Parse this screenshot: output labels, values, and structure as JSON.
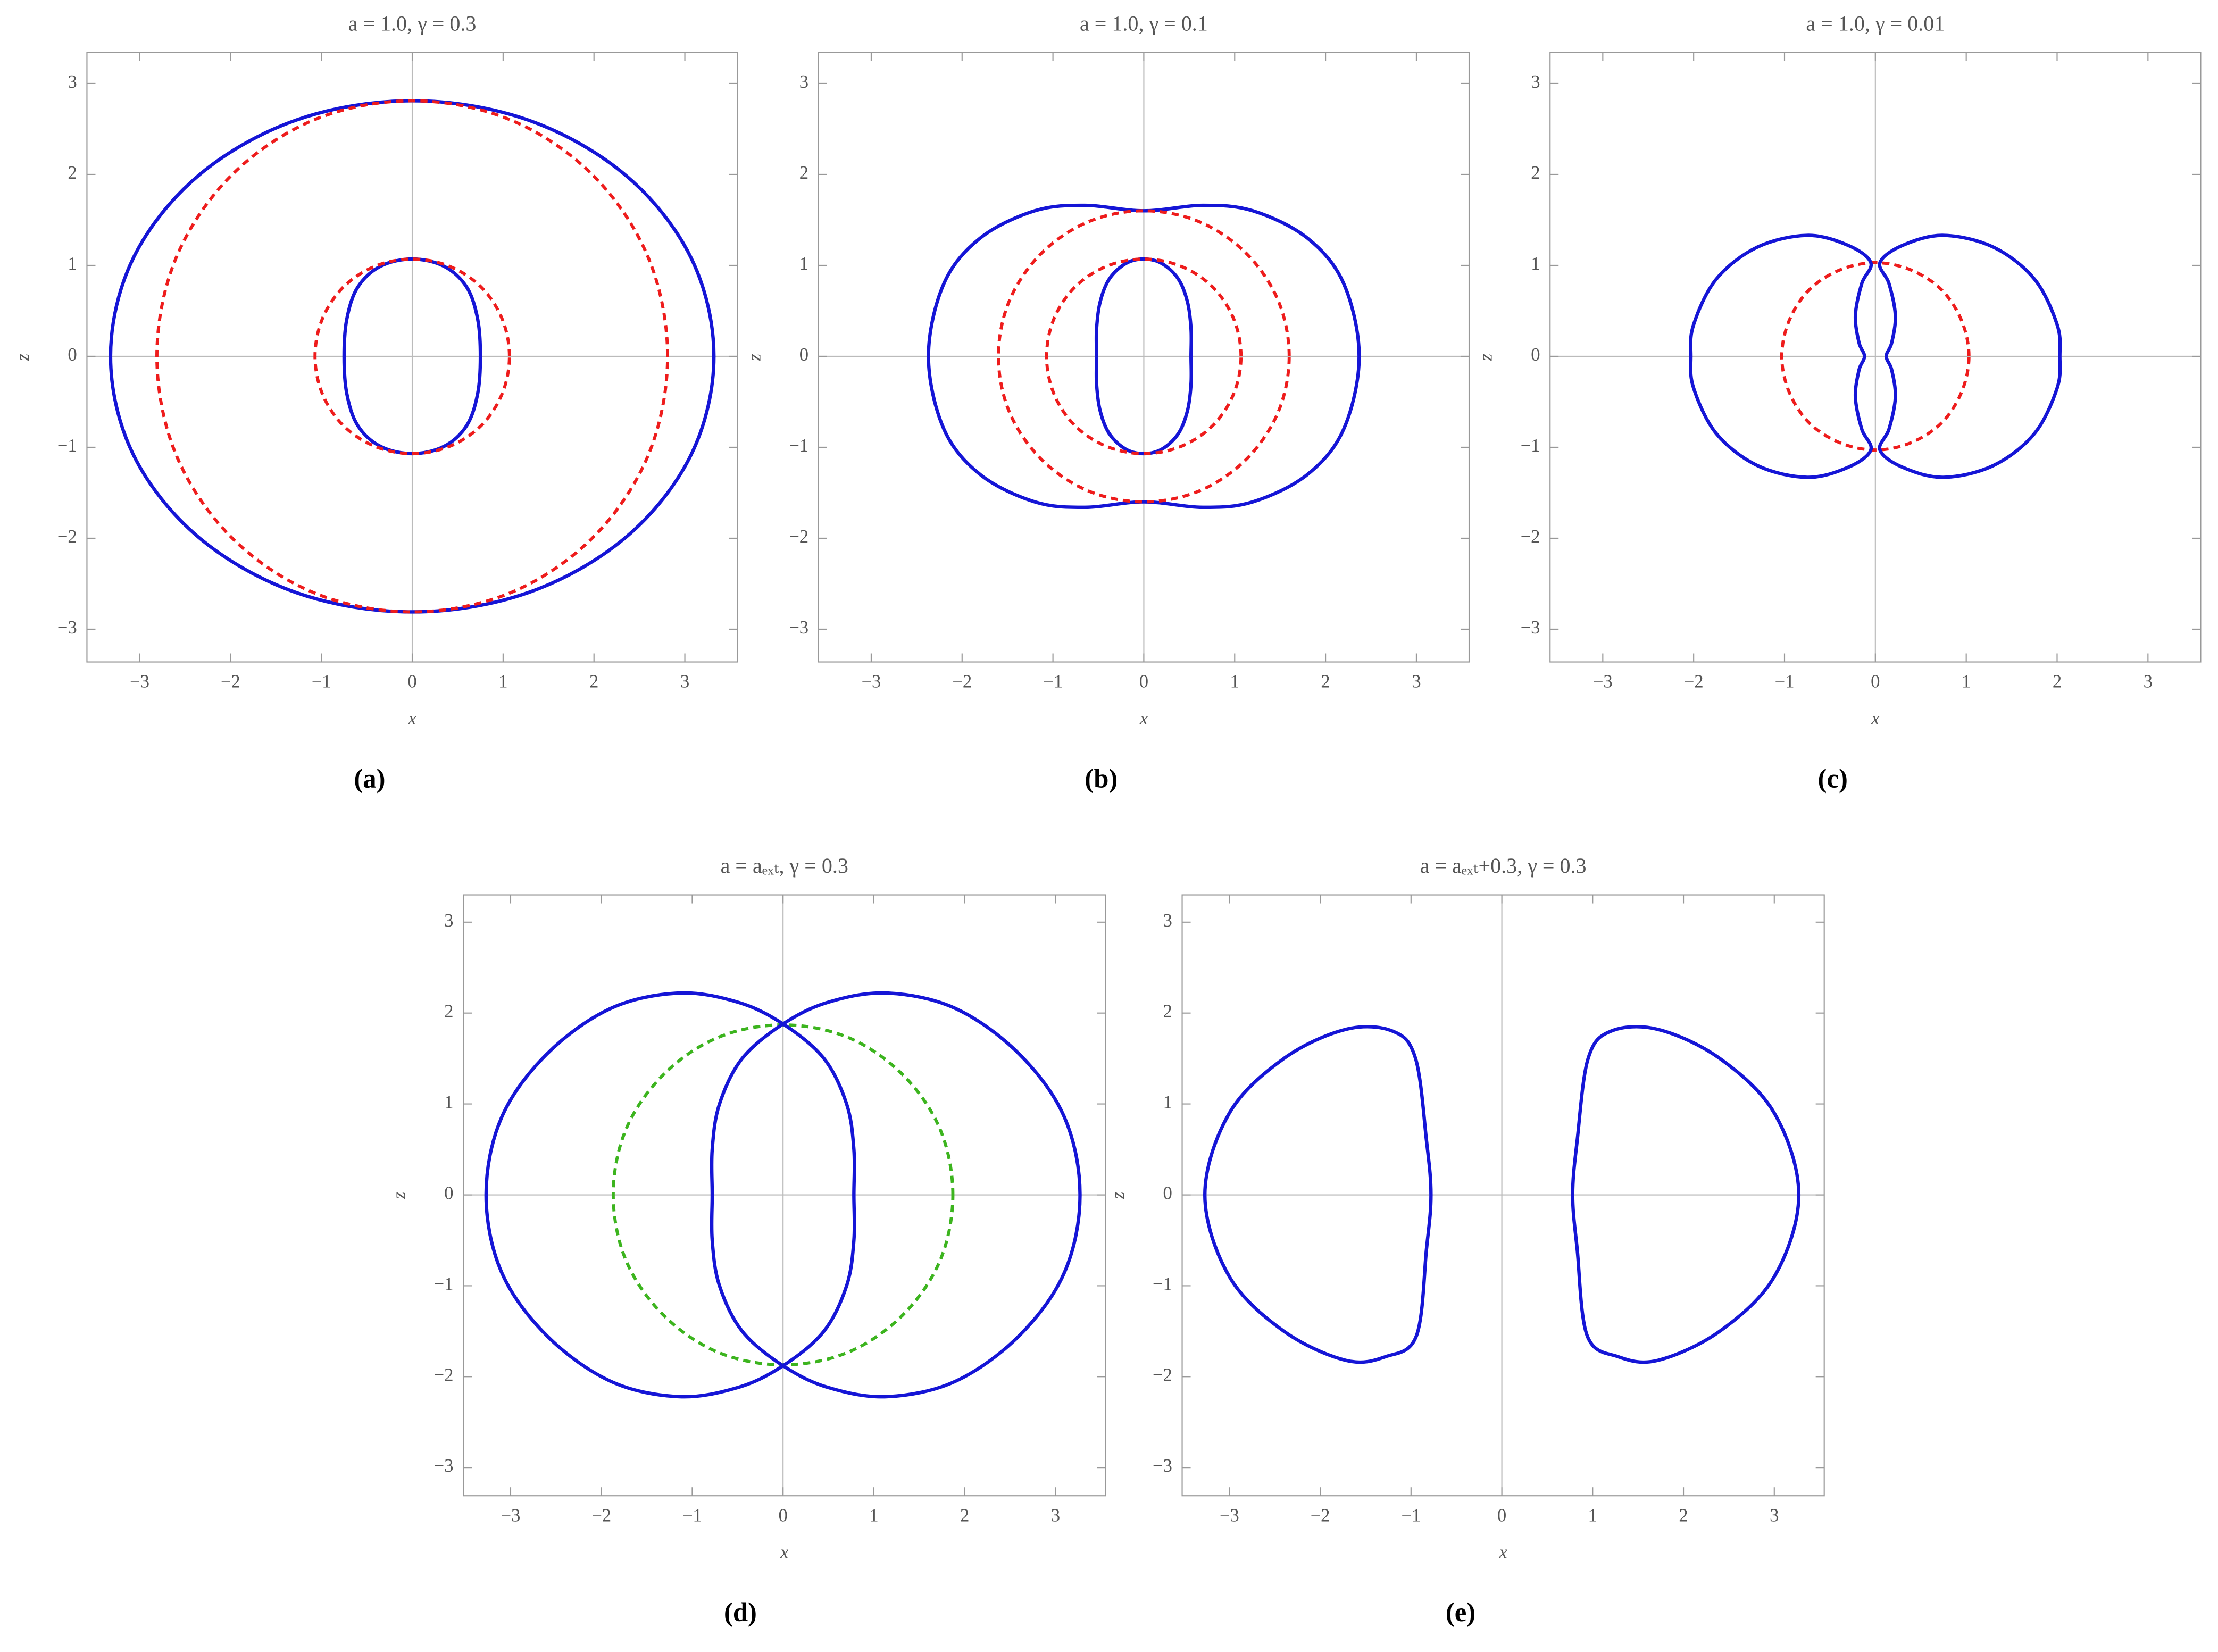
{
  "chart_data": [
    {
      "type": "line",
      "title": "a = 1.0, γ = 0.3",
      "caption": "(a)",
      "x_label": "x",
      "y_label": "z",
      "xlim": [
        -3.58,
        3.58
      ],
      "ylim": [
        -3.36,
        3.34
      ],
      "xticks": [
        {
          "value": -3,
          "label": "−3"
        },
        {
          "value": -2,
          "label": "−2"
        },
        {
          "value": -1,
          "label": "−1"
        },
        0,
        1,
        2,
        3
      ],
      "yticks": [
        {
          "value": -3,
          "label": "−3"
        },
        {
          "value": -2,
          "label": "−2"
        },
        {
          "value": -1,
          "label": "−1"
        },
        0,
        1,
        2,
        3
      ],
      "series": [
        {
          "color": "#1515d6",
          "dashed": false,
          "x": [
            3.32,
            3.07,
            2.35,
            1.27,
            0,
            -1.27,
            -2.35,
            -3.07,
            -3.32,
            -3.07,
            -2.35,
            -1.27,
            0,
            1.27,
            2.35,
            3.07,
            3.32
          ],
          "values": [
            0,
            1.08,
            1.99,
            2.6,
            2.81,
            2.6,
            1.99,
            1.08,
            0,
            -1.08,
            -1.99,
            -2.6,
            -2.81,
            -2.6,
            -1.99,
            -1.08,
            0
          ]
        },
        {
          "color": "#1515d6",
          "dashed": false,
          "x": [
            0.75,
            0.72,
            0.6,
            0.35,
            0,
            -0.35,
            -0.6,
            -0.72,
            -0.75,
            -0.72,
            -0.6,
            -0.35,
            0,
            0.35,
            0.6,
            0.72,
            0.75
          ],
          "values": [
            0,
            0.41,
            0.76,
            0.99,
            1.07,
            0.99,
            0.76,
            0.41,
            0,
            -0.41,
            -0.76,
            -0.99,
            -1.07,
            -0.99,
            -0.76,
            -0.41,
            0
          ]
        },
        {
          "color": "#ee1c1c",
          "dashed": true,
          "x": [
            2.81,
            2.6,
            1.99,
            1.08,
            0,
            -1.08,
            -1.99,
            -2.6,
            -2.81,
            -2.6,
            -1.99,
            -1.08,
            0,
            1.08,
            1.99,
            2.6,
            2.81
          ],
          "values": [
            0,
            1.08,
            1.99,
            2.6,
            2.81,
            2.6,
            1.99,
            1.08,
            0,
            -1.08,
            -1.99,
            -2.6,
            -2.81,
            -2.6,
            -1.99,
            -1.08,
            0
          ]
        },
        {
          "color": "#ee1c1c",
          "dashed": true,
          "x": [
            1.07,
            0.99,
            0.76,
            0.41,
            0,
            -0.41,
            -0.76,
            -0.99,
            -1.07,
            -0.99,
            -0.76,
            -0.41,
            0,
            0.41,
            0.76,
            0.99,
            1.07
          ],
          "values": [
            0,
            0.41,
            0.76,
            0.99,
            1.07,
            0.99,
            0.76,
            0.41,
            0,
            -0.41,
            -0.76,
            -0.99,
            -1.07,
            -0.99,
            -0.76,
            -0.41,
            0
          ]
        }
      ]
    },
    {
      "type": "line",
      "title": "a = 1.0, γ = 0.1",
      "caption": "(b)",
      "x_label": "x",
      "y_label": "z",
      "xlim": [
        -3.58,
        3.58
      ],
      "ylim": [
        -3.36,
        3.34
      ],
      "xticks": [
        {
          "value": -3,
          "label": "−3"
        },
        {
          "value": -2,
          "label": "−2"
        },
        {
          "value": -1,
          "label": "−1"
        },
        0,
        1,
        2,
        3
      ],
      "yticks": [
        {
          "value": -3,
          "label": "−3"
        },
        {
          "value": -2,
          "label": "−2"
        },
        {
          "value": -1,
          "label": "−1"
        },
        0,
        1,
        2,
        3
      ],
      "series": [
        {
          "color": "#1515d6",
          "dashed": false,
          "x": [
            2.37,
            2.2,
            1.8,
            1.2,
            0.65,
            0,
            -0.65,
            -1.2,
            -1.8,
            -2.2,
            -2.37,
            -2.2,
            -1.8,
            -1.2,
            -0.65,
            0,
            0.65,
            1.2,
            1.8,
            2.2,
            2.37
          ],
          "values": [
            0,
            0.8,
            1.3,
            1.6,
            1.66,
            1.6,
            1.66,
            1.6,
            1.3,
            0.8,
            0,
            -0.8,
            -1.3,
            -1.6,
            -1.66,
            -1.6,
            -1.66,
            -1.6,
            -1.3,
            -0.8,
            0
          ]
        },
        {
          "color": "#1515d6",
          "dashed": false,
          "x": [
            0.52,
            0.52,
            0.48,
            0.38,
            0.2,
            0,
            -0.2,
            -0.38,
            -0.48,
            -0.52,
            -0.52,
            -0.52,
            -0.48,
            -0.38,
            -0.2,
            0,
            0.2,
            0.38,
            0.48,
            0.52,
            0.52
          ],
          "values": [
            0,
            0.3,
            0.6,
            0.85,
            1.02,
            1.07,
            1.02,
            0.85,
            0.6,
            0.3,
            0,
            -0.3,
            -0.6,
            -0.85,
            -1.02,
            -1.07,
            -1.02,
            -0.85,
            -0.6,
            -0.3,
            0
          ]
        },
        {
          "color": "#ee1c1c",
          "dashed": true,
          "x": [
            1.6,
            1.48,
            1.13,
            0.61,
            0,
            -0.61,
            -1.13,
            -1.48,
            -1.6,
            -1.48,
            -1.13,
            -0.61,
            0,
            0.61,
            1.13,
            1.48,
            1.6
          ],
          "values": [
            0,
            0.61,
            1.13,
            1.48,
            1.6,
            1.48,
            1.13,
            0.61,
            0,
            -0.61,
            -1.13,
            -1.48,
            -1.6,
            -1.48,
            -1.13,
            -0.61,
            0
          ]
        },
        {
          "color": "#ee1c1c",
          "dashed": true,
          "x": [
            1.07,
            0.99,
            0.76,
            0.41,
            0,
            -0.41,
            -0.76,
            -0.99,
            -1.07,
            -0.99,
            -0.76,
            -0.41,
            0,
            0.41,
            0.76,
            0.99,
            1.07
          ],
          "values": [
            0,
            0.41,
            0.76,
            0.99,
            1.07,
            0.99,
            0.76,
            0.41,
            0,
            -0.41,
            -0.76,
            -0.99,
            -1.07,
            -0.99,
            -0.76,
            -0.41,
            0
          ]
        }
      ]
    },
    {
      "type": "line",
      "title": "a = 1.0, γ = 0.01",
      "caption": "(c)",
      "x_label": "x",
      "y_label": "z",
      "xlim": [
        -3.58,
        3.58
      ],
      "ylim": [
        -3.36,
        3.34
      ],
      "xticks": [
        {
          "value": -3,
          "label": "−3"
        },
        {
          "value": -2,
          "label": "−2"
        },
        {
          "value": -1,
          "label": "−1"
        },
        0,
        1,
        2,
        3
      ],
      "yticks": [
        {
          "value": -3,
          "label": "−3"
        },
        {
          "value": -2,
          "label": "−2"
        },
        {
          "value": -1,
          "label": "−1"
        },
        0,
        1,
        2,
        3
      ],
      "series": [
        {
          "color": "#ee1c1c",
          "dashed": true,
          "x": [
            1.03,
            0.95,
            0.73,
            0.39,
            0,
            -0.39,
            -0.73,
            -0.95,
            -1.03,
            -0.95,
            -0.73,
            -0.39,
            0,
            0.39,
            0.73,
            0.95,
            1.03
          ],
          "values": [
            0,
            0.39,
            0.73,
            0.95,
            1.03,
            0.95,
            0.73,
            0.39,
            0,
            -0.39,
            -0.73,
            -0.95,
            -1.03,
            -0.95,
            -0.73,
            -0.39,
            0
          ]
        },
        {
          "color": "#1515d6",
          "dashed": false,
          "x": [
            0.05,
            0.3,
            0.75,
            1.3,
            1.75,
            2.0,
            2.03,
            2.0,
            1.75,
            1.3,
            0.75,
            0.3,
            0.05,
            0.15,
            0.22,
            0.18,
            0.12,
            0.18,
            0.22,
            0.15,
            0.05
          ],
          "values": [
            1.03,
            1.22,
            1.33,
            1.2,
            0.85,
            0.35,
            0,
            -0.35,
            -0.85,
            -1.2,
            -1.33,
            -1.22,
            -1.03,
            -0.8,
            -0.45,
            -0.15,
            0,
            0.15,
            0.45,
            0.8,
            1.03
          ]
        },
        {
          "color": "#1515d6",
          "dashed": false,
          "x": [
            -0.05,
            -0.3,
            -0.75,
            -1.3,
            -1.75,
            -2.0,
            -2.03,
            -2.0,
            -1.75,
            -1.3,
            -0.75,
            -0.3,
            -0.05,
            -0.15,
            -0.22,
            -0.18,
            -0.12,
            -0.18,
            -0.22,
            -0.15,
            -0.05
          ],
          "values": [
            1.03,
            1.22,
            1.33,
            1.2,
            0.85,
            0.35,
            0,
            -0.35,
            -0.85,
            -1.2,
            -1.33,
            -1.22,
            -1.03,
            -0.8,
            -0.45,
            -0.15,
            0,
            0.15,
            0.45,
            0.8,
            1.03
          ]
        }
      ]
    },
    {
      "type": "line",
      "title": "a = aₑₓₜ, γ = 0.3",
      "caption": "(d)",
      "x_label": "x",
      "y_label": "z",
      "xlim": [
        -3.52,
        3.55
      ],
      "ylim": [
        -3.31,
        3.3
      ],
      "xticks": [
        {
          "value": -3,
          "label": "−3"
        },
        {
          "value": -2,
          "label": "−2"
        },
        {
          "value": -1,
          "label": "−1"
        },
        0,
        1,
        2,
        3
      ],
      "yticks": [
        {
          "value": -3,
          "label": "−3"
        },
        {
          "value": -2,
          "label": "−2"
        },
        {
          "value": -1,
          "label": "−1"
        },
        0,
        1,
        2,
        3
      ],
      "series": [
        {
          "color": "#3cb41e",
          "dashed": true,
          "x": [
            1.87,
            1.73,
            1.32,
            0.72,
            0,
            -0.72,
            -1.32,
            -1.73,
            -1.87,
            -1.73,
            -1.32,
            -0.72,
            0,
            0.72,
            1.32,
            1.73,
            1.87
          ],
          "values": [
            0,
            0.72,
            1.32,
            1.73,
            1.87,
            1.73,
            1.32,
            0.72,
            0,
            -0.72,
            -1.32,
            -1.73,
            -1.87,
            -1.73,
            -1.32,
            -0.72,
            0
          ]
        },
        {
          "color": "#1515d6",
          "dashed": false,
          "x": [
            0,
            -0.5,
            -1.15,
            -1.9,
            -2.6,
            -3.1,
            -3.27,
            -3.1,
            -2.6,
            -1.9,
            -1.15,
            -0.5,
            0,
            0.45,
            0.7,
            0.78,
            0.78,
            0.78,
            0.7,
            0.45,
            0
          ],
          "values": [
            1.88,
            2.12,
            2.22,
            2.05,
            1.55,
            0.85,
            0,
            -0.85,
            -1.55,
            -2.05,
            -2.22,
            -2.12,
            -1.88,
            -1.5,
            -1.0,
            -0.5,
            0,
            0.5,
            1.0,
            1.5,
            1.88
          ]
        },
        {
          "color": "#1515d6",
          "dashed": false,
          "x": [
            0,
            0.5,
            1.15,
            1.9,
            2.6,
            3.1,
            3.27,
            3.1,
            2.6,
            1.9,
            1.15,
            0.5,
            0,
            -0.45,
            -0.7,
            -0.78,
            -0.78,
            -0.78,
            -0.7,
            -0.45,
            0
          ],
          "values": [
            1.88,
            2.12,
            2.22,
            2.05,
            1.55,
            0.85,
            0,
            -0.85,
            -1.55,
            -2.05,
            -2.22,
            -2.12,
            -1.88,
            -1.5,
            -1.0,
            -0.5,
            0,
            0.5,
            1.0,
            1.5,
            1.88
          ]
        }
      ]
    },
    {
      "type": "line",
      "title": "a = aₑₓₜ+0.3, γ = 0.3",
      "caption": "(e)",
      "x_label": "x",
      "y_label": "z",
      "xlim": [
        -3.52,
        3.55
      ],
      "ylim": [
        -3.31,
        3.3
      ],
      "xticks": [
        {
          "value": -3,
          "label": "−3"
        },
        {
          "value": -2,
          "label": "−2"
        },
        {
          "value": -1,
          "label": "−1"
        },
        0,
        1,
        2,
        3
      ],
      "yticks": [
        {
          "value": -3,
          "label": "−3"
        },
        {
          "value": -2,
          "label": "−2"
        },
        {
          "value": -1,
          "label": "−1"
        },
        0,
        1,
        2,
        3
      ],
      "series": [
        {
          "color": "#1515d6",
          "dashed": false,
          "x": [
            0.78,
            0.83,
            0.94,
            1.28,
            1.72,
            2.4,
            3.0,
            3.27,
            3.0,
            2.4,
            1.72,
            1.2,
            0.95,
            0.83,
            0.78
          ],
          "values": [
            0,
            -0.6,
            -1.55,
            -1.78,
            -1.82,
            -1.5,
            -0.9,
            0,
            0.9,
            1.5,
            1.82,
            1.8,
            1.5,
            0.6,
            0
          ]
        },
        {
          "color": "#1515d6",
          "dashed": false,
          "x": [
            -0.78,
            -0.83,
            -0.94,
            -1.28,
            -1.72,
            -2.4,
            -3.0,
            -3.27,
            -3.0,
            -2.4,
            -1.72,
            -1.2,
            -0.95,
            -0.83,
            -0.78
          ],
          "values": [
            0,
            -0.6,
            -1.55,
            -1.78,
            -1.82,
            -1.5,
            -0.9,
            0,
            0.9,
            1.5,
            1.82,
            1.8,
            1.5,
            0.6,
            0
          ]
        }
      ]
    }
  ]
}
